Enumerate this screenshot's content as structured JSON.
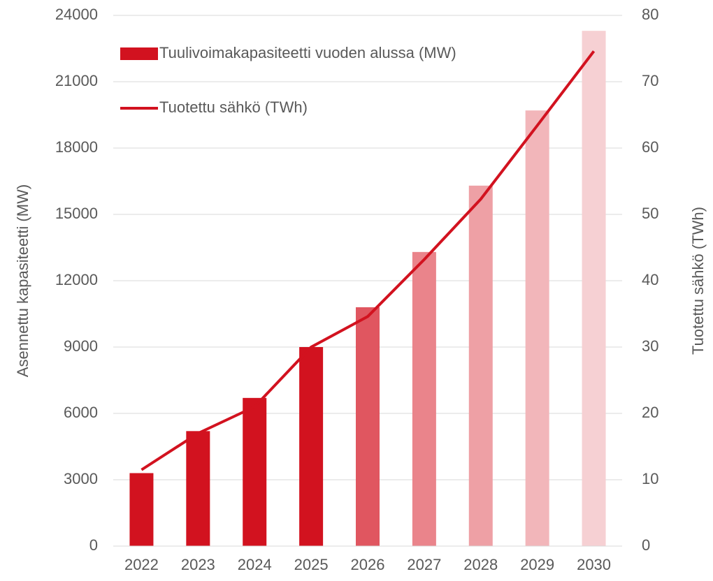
{
  "chart_data": {
    "type": "bar-line",
    "categories": [
      "2022",
      "2023",
      "2024",
      "2025",
      "2026",
      "2027",
      "2028",
      "2029",
      "2030"
    ],
    "series": [
      {
        "name": "Tuulivoimakapasiteetti vuoden alussa (MW)",
        "type": "bar",
        "axis": "y",
        "color": "#d2121f",
        "colors": [
          "#d2121f",
          "#d2121f",
          "#d2121f",
          "#d2121f",
          "#e05660",
          "#ea848b",
          "#eea0a5",
          "#f2b6ba",
          "#f6d0d3"
        ],
        "values": [
          3300,
          5200,
          6700,
          9000,
          10800,
          13300,
          16300,
          19700,
          23300
        ]
      },
      {
        "name": "Tuotettu sähkö (TWh)",
        "type": "line",
        "axis": "y2",
        "color": "#d2121f",
        "values": [
          11.5,
          17,
          21,
          30,
          34.6,
          43.2,
          52.3,
          63.4,
          74.6
        ]
      }
    ],
    "ylabel": "Asennettu kapasiteetti (MW)",
    "y2label": "Tuotettu sähkö (TWh)",
    "ylim": [
      0,
      24000
    ],
    "yticks": [
      0,
      3000,
      6000,
      9000,
      12000,
      15000,
      18000,
      21000,
      24000
    ],
    "y2lim": [
      0,
      80
    ],
    "y2ticks": [
      0,
      10,
      20,
      30,
      40,
      50,
      60,
      70,
      80
    ],
    "grid": true,
    "legend": "upper left"
  }
}
